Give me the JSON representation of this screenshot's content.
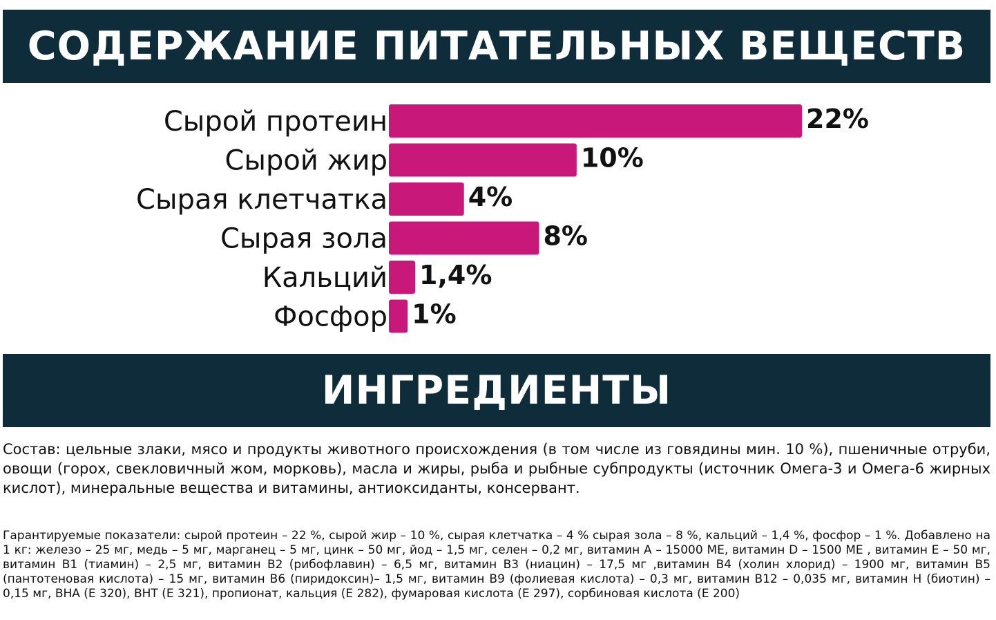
{
  "nutrients_heading": "СОДЕРЖАНИЕ ПИТАТЕЛЬНЫХ ВЕЩЕСТВ",
  "ingredients_heading": "ИНГРЕДИЕНТЫ",
  "colors": {
    "banner": "#0f2c3a",
    "bar": "#c8197a"
  },
  "chart_data": {
    "type": "bar",
    "orientation": "horizontal",
    "categories": [
      "Сырой протеин",
      "Сырой жир",
      "Сырая клетчатка",
      "Сырая зола",
      "Кальций",
      "Фосфор"
    ],
    "values": [
      22,
      10,
      4,
      8,
      1.4,
      1
    ],
    "value_labels": [
      "22%",
      "10%",
      "4%",
      "8%",
      "1,4%",
      "1%"
    ],
    "unit": "%",
    "xlim": [
      0,
      22
    ],
    "grid": false,
    "legend": "none"
  },
  "ingredients": {
    "composition": "Состав: цельные злаки, мясо и продукты животного происхождения (в том числе из говядины мин. 10 %), пшеничные отруби, овощи (горох, свекловичный жом, морковь), масла и жиры, рыба и рыбные субпродукты (источник Омега-3 и Омега-6 жирных кислот), минеральные вещества и витамины, антиоксиданты, консервант.",
    "guaranteed": "Гарантируемые показатели: сырой протеин – 22 %, сырой жир – 10 %, сырая клетчатка – 4 % сырая зола – 8 %, кальций – 1,4 %, фосфор – 1 %. Добавлено на 1 кг: железо – 25 мг, медь – 5 мг, марганец – 5 мг, цинк – 50 мг, йод – 1,5 мг, селен – 0,2 мг, витамин А – 15000 МЕ, витамин D – 1500 МЕ , витамин Е – 50 мг, витамин В1 (тиамин) – 2,5 мг, витамин В2 (рибофлавин) – 6,5 мг, витамин В3 (ниацин) – 17,5 мг ,витамин В4 (холин хлорид) – 1900 мг, витамин В5 (пантотеновая кислота) – 15 мг, витамин В6 (пиридоксин)– 1,5 мг, витамин В9 (фолиевая кислота) – 0,3 мг, витамин В12 – 0,035 мг, витамин Н (биотин) – 0,15 мг, ВНА (Е 320), ВНТ (Е 321), пропионат, кальция (Е 282), фумаровая кислота (Е 297), сорбиновая кислота (Е 200)"
  }
}
